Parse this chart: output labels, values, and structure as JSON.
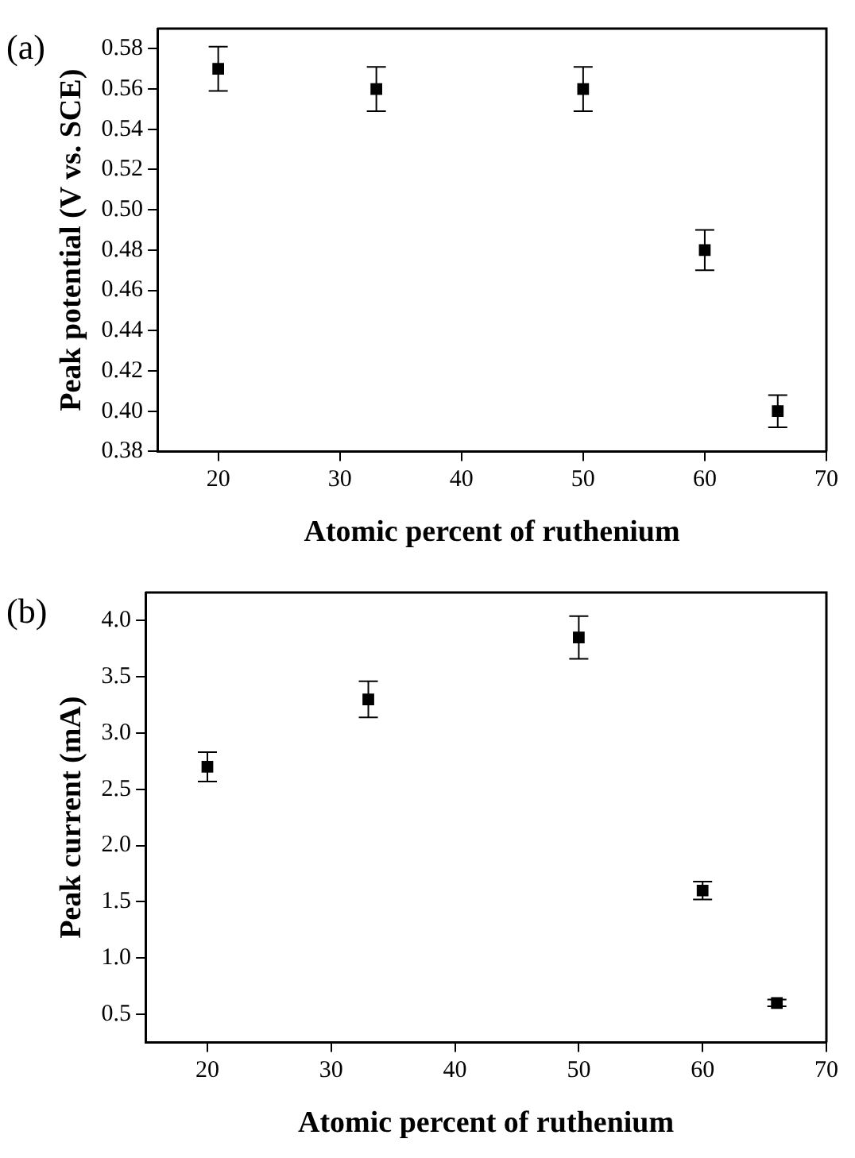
{
  "chart_data": [
    {
      "type": "scatter",
      "xlabel": "Atomic percent of ruthenium",
      "ylabel": "Peak potential (V vs. SCE)",
      "annotations": [
        "(a)"
      ],
      "x": [
        20,
        33,
        50,
        60,
        66
      ],
      "values": [
        0.57,
        0.56,
        0.56,
        0.48,
        0.4
      ],
      "errors": [
        0.011,
        0.011,
        0.011,
        0.01,
        0.008
      ],
      "color": "#000000",
      "marker": "square",
      "xlim": [
        15,
        70
      ],
      "xticks": [
        20,
        30,
        40,
        50,
        60,
        70
      ],
      "ylim": [
        0.38,
        0.59
      ],
      "yticks": [
        0.38,
        {
          "value": 0.4,
          "label": "0.40"
        },
        0.42,
        0.44,
        0.46,
        0.48,
        {
          "value": 0.5,
          "label": "0.50"
        },
        0.52,
        0.54,
        0.56,
        0.58
      ],
      "grid": false,
      "legend": false
    },
    {
      "type": "scatter",
      "xlabel": "Atomic percent of ruthenium",
      "ylabel": "Peak current (mA)",
      "annotations": [
        "(b)"
      ],
      "x": [
        20,
        33,
        50,
        60,
        66
      ],
      "values": [
        2.7,
        3.3,
        3.85,
        1.6,
        0.6
      ],
      "errors": [
        0.13,
        0.16,
        0.19,
        0.08,
        0.03
      ],
      "color": "#000000",
      "marker": "square",
      "xlim": [
        15,
        70
      ],
      "xticks": [
        20,
        30,
        40,
        50,
        60,
        70
      ],
      "ylim": [
        0.25,
        4.25
      ],
      "yticks": [
        {
          "value": 0.5,
          "label": "0.5"
        },
        {
          "value": 1,
          "label": "1.0"
        },
        {
          "value": 1.5,
          "label": "1.5"
        },
        {
          "value": 2,
          "label": "2.0"
        },
        {
          "value": 2.5,
          "label": "2.5"
        },
        {
          "value": 3,
          "label": "3.0"
        },
        {
          "value": 3.5,
          "label": "3.5"
        },
        {
          "value": 4,
          "label": "4.0"
        }
      ],
      "grid": false,
      "legend": false
    }
  ]
}
